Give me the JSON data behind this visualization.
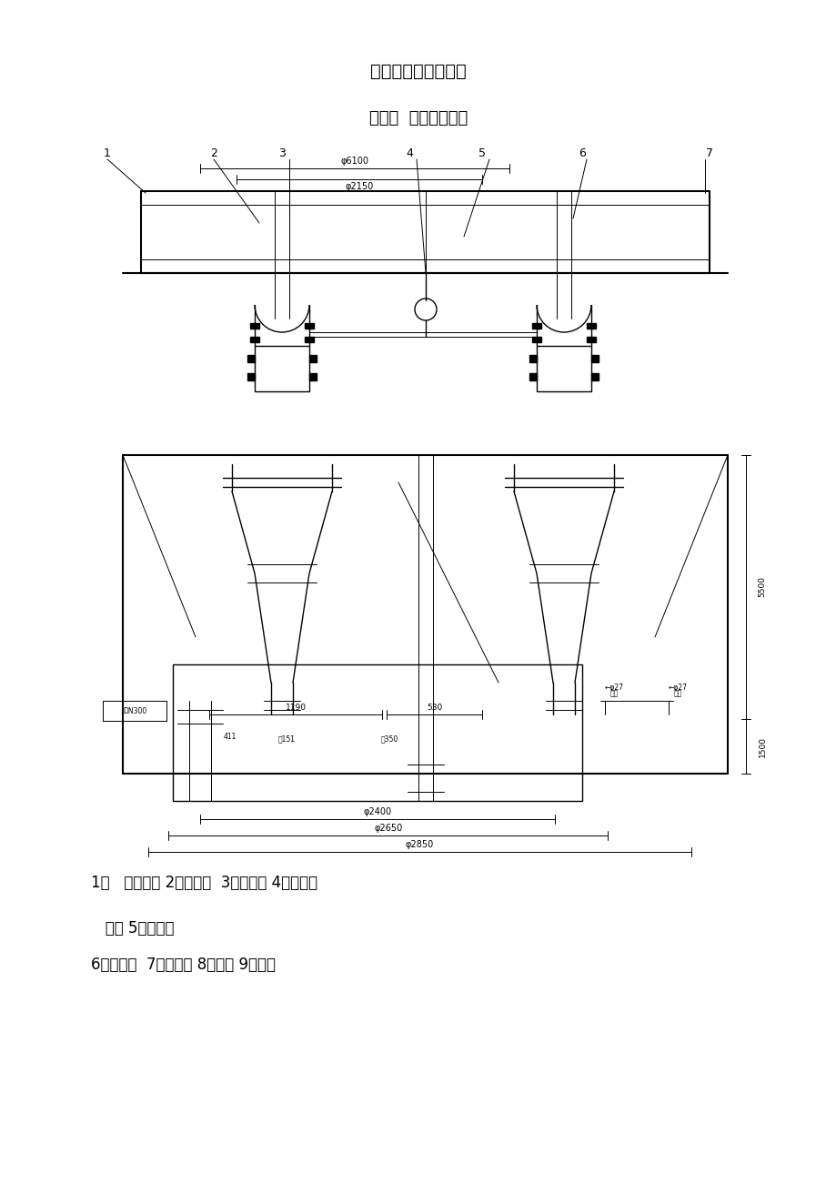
{
  "title": "水力旋流器使用规程",
  "chapter": "第一章  设备主要结构",
  "caption_line1": "1、   溢流弯头 2、气动阀  3、压力表 4、进料分",
  "caption_line2": "   配器 5、溢流箱",
  "caption_line3": "6、旋流器  7、底流箱 8、护栏 9、扶梯",
  "bg_color": "#ffffff",
  "line_color": "#000000",
  "title_fontsize": 14,
  "chapter_fontsize": 13,
  "caption_fontsize": 12
}
